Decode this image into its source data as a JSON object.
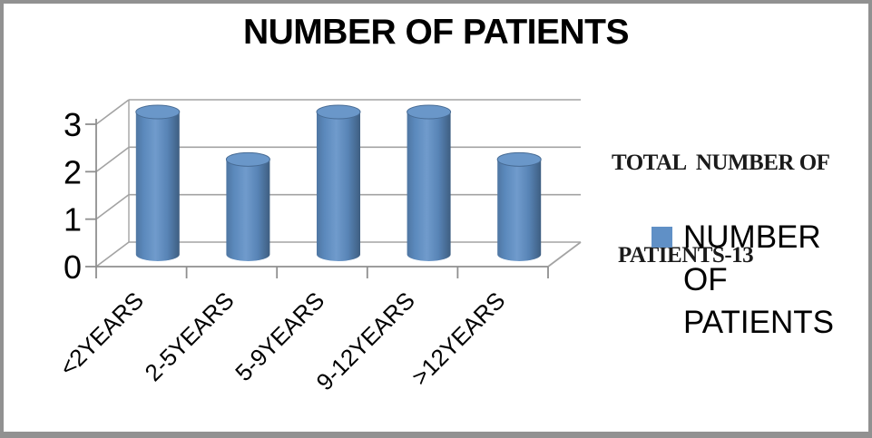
{
  "window": {
    "background": "#FFFFFF",
    "border_color": "#919191"
  },
  "title": "NUMBER OF PATIENTS",
  "annotation": {
    "lines": [
      "TOTAL  NUMBER OF",
      "PATIENTS-13"
    ],
    "text": "TOTAL NUMBER OF PATIENTS-13"
  },
  "legend": {
    "swatch_color": "#6090C6",
    "lines": [
      "NUMBER OF",
      "PATIENTS"
    ]
  },
  "chart_data": {
    "type": "bar",
    "subtype": "3d-cylinder",
    "title": "NUMBER OF PATIENTS",
    "categories": [
      "<2YEARS",
      "2-5YEARS",
      "5-9YEARS",
      "9-12YEARS",
      ">12YEARS"
    ],
    "series": [
      {
        "name": "NUMBER OF PATIENTS",
        "values": [
          3,
          2,
          3,
          3,
          2
        ]
      }
    ],
    "xlabel": "",
    "ylabel": "",
    "ylim": [
      0,
      3
    ],
    "yticks": [
      0,
      1,
      2,
      3
    ],
    "grid": true,
    "legend_position": "right",
    "bar_color": "#6090C6",
    "annotation": "TOTAL NUMBER OF PATIENTS-13"
  }
}
